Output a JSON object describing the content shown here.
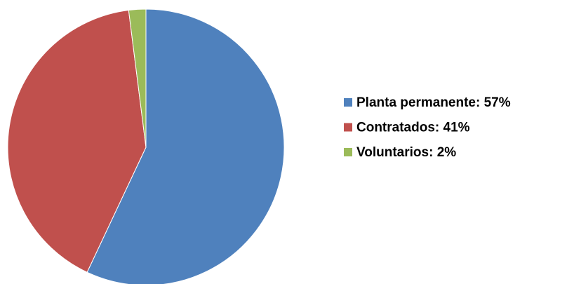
{
  "chart_data": {
    "type": "pie",
    "categories": [
      "Planta permanente: 57%",
      "Contratados: 41%",
      "Voluntarios: 2%"
    ],
    "values": [
      57,
      41,
      2
    ],
    "colors": [
      "#4f81bd",
      "#c0504d",
      "#9bbb59"
    ],
    "legend": "right"
  }
}
